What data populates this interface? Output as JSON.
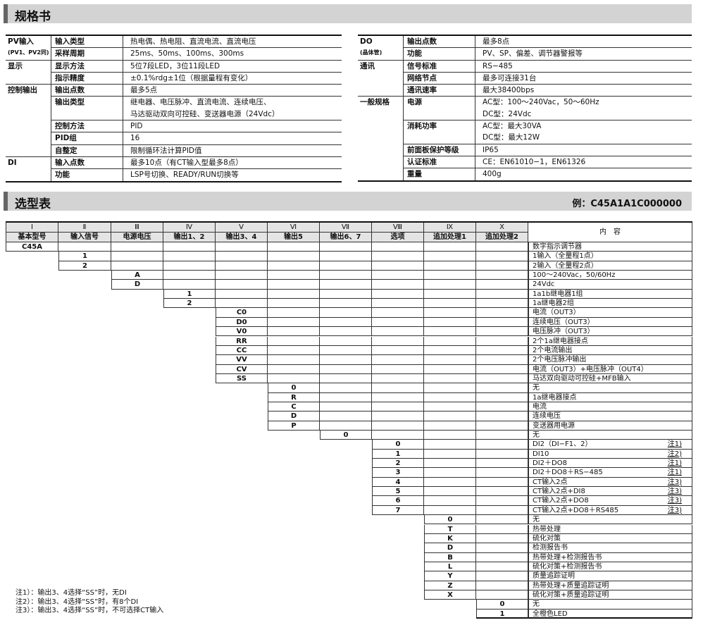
{
  "spec_header": {
    "title": "规格书"
  },
  "spec_left": [
    {
      "cat": "PV输入",
      "cat_sub": "(PV1、PV2同)",
      "rows": [
        {
          "item": "输入类型",
          "value": [
            "热电偶、热电阻、直流电流、直流电压"
          ]
        },
        {
          "item": "采样周期",
          "value": [
            "25ms、50ms、100ms、300ms"
          ]
        }
      ]
    },
    {
      "cat": "显示",
      "rows": [
        {
          "item": "显示方法",
          "value": [
            "5位7段LED，3位11段LED"
          ]
        },
        {
          "item": "指示精度",
          "value": [
            "±0.1%rdg±1位（根据量程有变化）"
          ]
        }
      ]
    },
    {
      "cat": "控制输出",
      "rows": [
        {
          "item": "输出点数",
          "value": [
            "最多5点"
          ]
        },
        {
          "item": "输出类型",
          "value": [
            "继电器、电压脉冲、直流电流、连续电压、",
            "马达驱动双向可控硅、变送器电源（24Vdc）"
          ]
        },
        {
          "item": "控制方法",
          "value": [
            "PID"
          ]
        },
        {
          "item": "PID组",
          "value": [
            "16"
          ]
        },
        {
          "item": "自整定",
          "value": [
            "限制循环法计算PID值"
          ]
        }
      ]
    },
    {
      "cat": "DI",
      "rows": [
        {
          "item": "输入点数",
          "value": [
            "最多10点（有CT输入型最多8点）"
          ]
        },
        {
          "item": "功能",
          "value": [
            "LSP号切换、READY/RUN切换等"
          ]
        }
      ]
    }
  ],
  "spec_right": [
    {
      "cat": "DO",
      "cat_sub": "(晶体管)",
      "rows": [
        {
          "item": "输出点数",
          "value": [
            "最多8点"
          ]
        },
        {
          "item": "功能",
          "value": [
            "PV、SP、偏差、调节器警报等"
          ]
        }
      ]
    },
    {
      "cat": "通讯",
      "rows": [
        {
          "item": "信号标准",
          "value": [
            "RS−485"
          ]
        },
        {
          "item": "网络节点",
          "value": [
            "最多可连接31台"
          ]
        },
        {
          "item": "通讯速率",
          "value": [
            "最大38400bps"
          ]
        }
      ]
    },
    {
      "cat": "一般规格",
      "rows": [
        {
          "item": "电源",
          "value": [
            "AC型：100～240Vac，50～60Hz",
            "DC型：24Vdc"
          ]
        },
        {
          "item": "消耗功率",
          "value": [
            "AC型：最大30VA",
            "DC型：最大12W"
          ]
        },
        {
          "item": "前面板保护等级",
          "value": [
            "IP65"
          ]
        },
        {
          "item": "认证标准",
          "value": [
            "CE：EN61010−1，EN61326"
          ]
        },
        {
          "item": "重量",
          "value": [
            "400g"
          ]
        }
      ]
    }
  ],
  "select_header": {
    "title": "选型表",
    "example": "例：C45A1A1C000000"
  },
  "select_columns": [
    {
      "roman": "Ⅰ",
      "name": "基本型号"
    },
    {
      "roman": "Ⅱ",
      "name": "输入信号"
    },
    {
      "roman": "Ⅲ",
      "name": "电源电压"
    },
    {
      "roman": "Ⅳ",
      "name": "输出1、2"
    },
    {
      "roman": "Ⅴ",
      "name": "输出3、4"
    },
    {
      "roman": "Ⅵ",
      "name": "输出5"
    },
    {
      "roman": "Ⅶ",
      "name": "输出6、7"
    },
    {
      "roman": "Ⅷ",
      "name": "选项"
    },
    {
      "roman": "Ⅸ",
      "name": "追加处理1"
    },
    {
      "roman": "Ⅹ",
      "name": "追加处理2"
    }
  ],
  "content_header": "内　容",
  "select_rows": [
    {
      "col": 0,
      "code": "C45A",
      "desc": "数字指示调节器"
    },
    {
      "col": 1,
      "code": "1",
      "desc": "1输入（全量程1点）"
    },
    {
      "col": 1,
      "code": "2",
      "desc": "2输入（全量程2点）"
    },
    {
      "col": 2,
      "code": "A",
      "desc": "100～240Vac，50/60Hz"
    },
    {
      "col": 2,
      "code": "D",
      "desc": "24Vdc"
    },
    {
      "col": 3,
      "code": "1",
      "desc": "1a1b继电器1组"
    },
    {
      "col": 3,
      "code": "2",
      "desc": "1a继电器2组"
    },
    {
      "col": 4,
      "code": "C0",
      "desc": "电流（OUT3）"
    },
    {
      "col": 4,
      "code": "D0",
      "desc": "连续电压（OUT3）"
    },
    {
      "col": 4,
      "code": "V0",
      "desc": "电压脉冲（OUT3）"
    },
    {
      "col": 4,
      "code": "RR",
      "desc": "2个1a继电器接点"
    },
    {
      "col": 4,
      "code": "CC",
      "desc": "2个电流输出"
    },
    {
      "col": 4,
      "code": "VV",
      "desc": "2个电压脉冲输出"
    },
    {
      "col": 4,
      "code": "CV",
      "desc": "电流（OUT3）+电压脉冲（OUT4）"
    },
    {
      "col": 4,
      "code": "SS",
      "desc": "马达双向驱动可控硅+MFB输入"
    },
    {
      "col": 5,
      "code": "0",
      "desc": "无"
    },
    {
      "col": 5,
      "code": "R",
      "desc": "1a继电器接点"
    },
    {
      "col": 5,
      "code": "C",
      "desc": "电流"
    },
    {
      "col": 5,
      "code": "D",
      "desc": "连续电压"
    },
    {
      "col": 5,
      "code": "P",
      "desc": "变送器用电源"
    },
    {
      "col": 6,
      "code": "0",
      "desc": "无"
    },
    {
      "col": 7,
      "code": "0",
      "desc": "DI2（DI−F1、2）",
      "note": "注1)"
    },
    {
      "col": 7,
      "code": "1",
      "desc": "DI10",
      "note": "注2)"
    },
    {
      "col": 7,
      "code": "2",
      "desc": "DI2＋DO8",
      "note": "注1)"
    },
    {
      "col": 7,
      "code": "3",
      "desc": "DI2＋DO8＋RS−485",
      "note": "注1)"
    },
    {
      "col": 7,
      "code": "4",
      "desc": "CT输入2点",
      "note": "注3)"
    },
    {
      "col": 7,
      "code": "5",
      "desc": "CT输入2点+DI8",
      "note": "注3)"
    },
    {
      "col": 7,
      "code": "6",
      "desc": "CT输入2点+DO8",
      "note": "注3)"
    },
    {
      "col": 7,
      "code": "7",
      "desc": "CT输入2点+DO8＋RS485",
      "note": "注3)"
    },
    {
      "col": 8,
      "code": "0",
      "desc": "无"
    },
    {
      "col": 8,
      "code": "T",
      "desc": "热带处理"
    },
    {
      "col": 8,
      "code": "K",
      "desc": "硫化对策"
    },
    {
      "col": 8,
      "code": "D",
      "desc": "检测报告书"
    },
    {
      "col": 8,
      "code": "B",
      "desc": "热带处理+检测报告书"
    },
    {
      "col": 8,
      "code": "L",
      "desc": "硫化对策+检测报告书"
    },
    {
      "col": 8,
      "code": "Y",
      "desc": "质量追踪证明"
    },
    {
      "col": 8,
      "code": "Z",
      "desc": "热带处理+质量追踪证明"
    },
    {
      "col": 8,
      "code": "X",
      "desc": "硫化对策+质量追踪证明"
    },
    {
      "col": 9,
      "code": "0",
      "desc": "无"
    },
    {
      "col": 9,
      "code": "1",
      "desc": "全橙色LED"
    }
  ],
  "notes": [
    "注1）：输出3、4选择“SS”时，无DI",
    "注2）：输出3、4选择“SS”时，有8个DI",
    "注3）：输出3、4选择“SS”时，不可选择CT输入"
  ]
}
